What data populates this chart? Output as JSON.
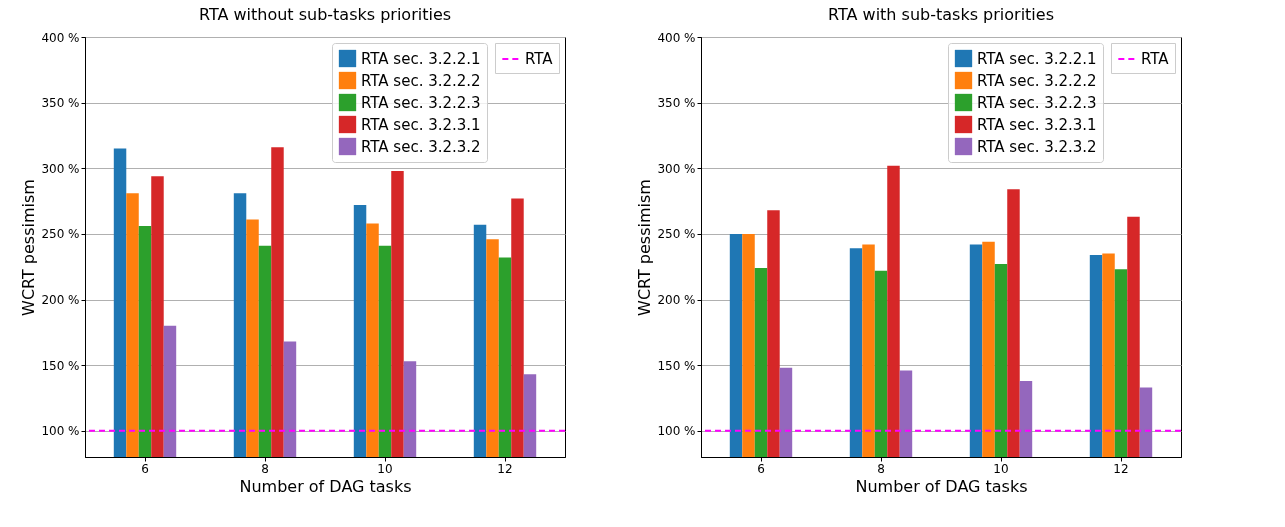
{
  "chart_data": [
    {
      "type": "bar",
      "title": "RTA without sub-tasks priorities",
      "xlabel": "Number of DAG tasks",
      "ylabel": "WCRT pessimism",
      "categories": [
        "6",
        "8",
        "10",
        "12"
      ],
      "series": [
        {
          "name": "RTA sec. 3.2.2.1",
          "color": "#1f77b4",
          "values": [
            315,
            281,
            272,
            257
          ]
        },
        {
          "name": "RTA sec. 3.2.2.2",
          "color": "#ff7f0e",
          "values": [
            281,
            261,
            258,
            246
          ]
        },
        {
          "name": "RTA sec. 3.2.2.3",
          "color": "#2ca02c",
          "values": [
            256,
            241,
            241,
            232
          ]
        },
        {
          "name": "RTA sec. 3.2.3.1",
          "color": "#d62728",
          "values": [
            294,
            316,
            298,
            277
          ]
        },
        {
          "name": "RTA sec. 3.2.3.2",
          "color": "#9467bd",
          "values": [
            180,
            168,
            153,
            143
          ]
        }
      ],
      "ylim": [
        80,
        400
      ],
      "yticks": [
        {
          "value": 100,
          "label": "100 %"
        },
        {
          "value": 150,
          "label": "150 %"
        },
        {
          "value": 200,
          "label": "200 %"
        },
        {
          "value": 250,
          "label": "250 %"
        },
        {
          "value": 300,
          "label": "300 %"
        },
        {
          "value": 350,
          "label": "350 %"
        },
        {
          "value": 400,
          "label": "400 %"
        }
      ],
      "ref_lines": [
        {
          "axis": "y",
          "value": 100,
          "label": "RTA",
          "color": "#ff00ff",
          "line_style": "dashed"
        }
      ],
      "grid": "y",
      "legend": "top right"
    },
    {
      "type": "bar",
      "title": "RTA with sub-tasks priorities",
      "xlabel": "Number of DAG tasks",
      "ylabel": "WCRT pessimism",
      "categories": [
        "6",
        "8",
        "10",
        "12"
      ],
      "series": [
        {
          "name": "RTA sec. 3.2.2.1",
          "color": "#1f77b4",
          "values": [
            250,
            239,
            242,
            234
          ]
        },
        {
          "name": "RTA sec. 3.2.2.2",
          "color": "#ff7f0e",
          "values": [
            250,
            242,
            244,
            235
          ]
        },
        {
          "name": "RTA sec. 3.2.2.3",
          "color": "#2ca02c",
          "values": [
            224,
            222,
            227,
            223
          ]
        },
        {
          "name": "RTA sec. 3.2.3.1",
          "color": "#d62728",
          "values": [
            268,
            302,
            284,
            263
          ]
        },
        {
          "name": "RTA sec. 3.2.3.2",
          "color": "#9467bd",
          "values": [
            148,
            146,
            138,
            133
          ]
        }
      ],
      "ylim": [
        80,
        400
      ],
      "yticks": [
        {
          "value": 100,
          "label": "100 %"
        },
        {
          "value": 150,
          "label": "150 %"
        },
        {
          "value": 200,
          "label": "200 %"
        },
        {
          "value": 250,
          "label": "250 %"
        },
        {
          "value": 300,
          "label": "300 %"
        },
        {
          "value": 350,
          "label": "350 %"
        },
        {
          "value": 400,
          "label": "400 %"
        }
      ],
      "ref_lines": [
        {
          "axis": "y",
          "value": 100,
          "label": "RTA",
          "color": "#ff00ff",
          "line_style": "dashed"
        }
      ],
      "grid": "y",
      "legend": "top right"
    }
  ]
}
